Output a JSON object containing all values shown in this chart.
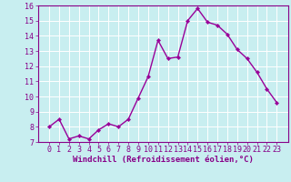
{
  "x": [
    0,
    1,
    2,
    3,
    4,
    5,
    6,
    7,
    8,
    9,
    10,
    11,
    12,
    13,
    14,
    15,
    16,
    17,
    18,
    19,
    20,
    21,
    22,
    23
  ],
  "y": [
    8.0,
    8.5,
    7.2,
    7.4,
    7.2,
    7.8,
    8.2,
    8.0,
    8.5,
    9.9,
    11.3,
    13.7,
    12.5,
    12.6,
    15.0,
    15.8,
    14.9,
    14.7,
    14.1,
    13.1,
    12.5,
    11.6,
    10.5,
    9.6
  ],
  "line_color": "#990099",
  "marker": "D",
  "marker_size": 2.2,
  "line_width": 1.0,
  "bg_color": "#c8eef0",
  "grid_color": "#aadddd",
  "tick_color": "#880088",
  "label_color": "#880088",
  "xlabel": "Windchill (Refroidissement éolien,°C)",
  "ylim": [
    7,
    16
  ],
  "yticks": [
    7,
    8,
    9,
    10,
    11,
    12,
    13,
    14,
    15,
    16
  ],
  "xticks": [
    0,
    1,
    2,
    3,
    4,
    5,
    6,
    7,
    8,
    9,
    10,
    11,
    12,
    13,
    14,
    15,
    16,
    17,
    18,
    19,
    20,
    21,
    22,
    23
  ],
  "xlabel_fontsize": 6.5,
  "tick_fontsize": 6.0
}
